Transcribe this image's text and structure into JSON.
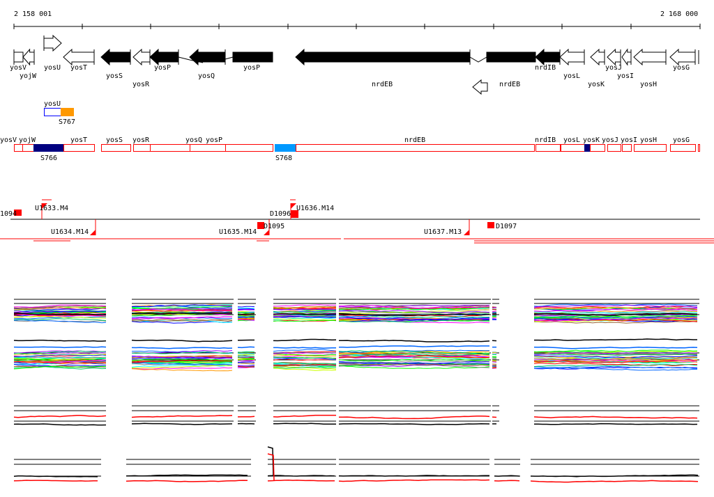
{
  "ruler": {
    "start_label": "2 158 001",
    "end_label": "2 168 000"
  },
  "genes": [
    {
      "label": "yosV"
    },
    {
      "label": "yojW"
    },
    {
      "label": "yosU"
    },
    {
      "label": "yosT"
    },
    {
      "label": "yosS"
    },
    {
      "label": "yosR"
    },
    {
      "label": "yosP"
    },
    {
      "label": "yosQ"
    },
    {
      "label": "yosP"
    },
    {
      "label": "nrdEB"
    },
    {
      "label": "nrdEB"
    },
    {
      "label": "nrdIB"
    },
    {
      "label": "yosL"
    },
    {
      "label": "yosK"
    },
    {
      "label": "yosJ"
    },
    {
      "label": "yosI"
    },
    {
      "label": "yosH"
    },
    {
      "label": "yosG"
    }
  ],
  "feature_track": {
    "gene_label": "yosU",
    "feature_label": "S767"
  },
  "segment_track": {
    "labels": [
      "yosV",
      "yojW",
      "yosT",
      "yosS",
      "yosR",
      "yosQ",
      "yosP",
      "nrdEB",
      "nrdIB",
      "yosL",
      "yosK",
      "yosJ",
      "yosI",
      "yosH",
      "yosG"
    ],
    "features": [
      "S766",
      "S768"
    ]
  },
  "markers": [
    "1094",
    "U1633.M4",
    "U1634.M14",
    "U1635.M14",
    "D1095",
    "D1096",
    "U1636.M14",
    "U1637.M13",
    "D1097"
  ],
  "colors": {
    "red": "#ff0000",
    "navy": "#000080",
    "orange": "#ff9900",
    "sky": "#0099ff",
    "blue": "#0000ff"
  }
}
